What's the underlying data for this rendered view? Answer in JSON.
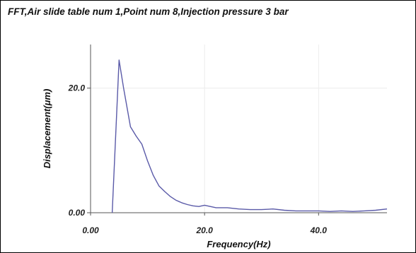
{
  "chart_data": {
    "type": "line",
    "title": "FFT,Air slide table num 1,Point num 8,Injection pressure 3 bar",
    "xlabel": "Frequency(Hz)",
    "ylabel": "Displacement(μm)",
    "xlim": [
      0,
      52
    ],
    "ylim": [
      0,
      27
    ],
    "x_ticks": [
      {
        "value": 0,
        "label": "0.00"
      },
      {
        "value": 20,
        "label": "20.0"
      },
      {
        "value": 40,
        "label": "40.0"
      }
    ],
    "y_ticks": [
      {
        "value": 0,
        "label": "0.00"
      },
      {
        "value": 20,
        "label": "20.0"
      }
    ],
    "grid": true,
    "series": [
      {
        "color": "#5a5aa8",
        "x": [
          3.8,
          5.0,
          5.8,
          7.0,
          8.0,
          9.0,
          10.0,
          11.0,
          12.0,
          13.0,
          14.0,
          15.0,
          16.0,
          17.0,
          18.0,
          19.0,
          20.0,
          22.0,
          24.0,
          26.0,
          28.0,
          30.0,
          32.0,
          34.0,
          36.0,
          38.0,
          40.0,
          42.0,
          44.0,
          46.0,
          48.0,
          50.0,
          52.0
        ],
        "y": [
          0.0,
          24.5,
          20.0,
          13.8,
          12.3,
          11.0,
          8.3,
          6.0,
          4.3,
          3.4,
          2.6,
          2.0,
          1.6,
          1.3,
          1.1,
          1.0,
          1.2,
          0.8,
          0.8,
          0.6,
          0.5,
          0.5,
          0.6,
          0.4,
          0.3,
          0.3,
          0.3,
          0.2,
          0.3,
          0.2,
          0.3,
          0.4,
          0.6
        ]
      }
    ]
  }
}
